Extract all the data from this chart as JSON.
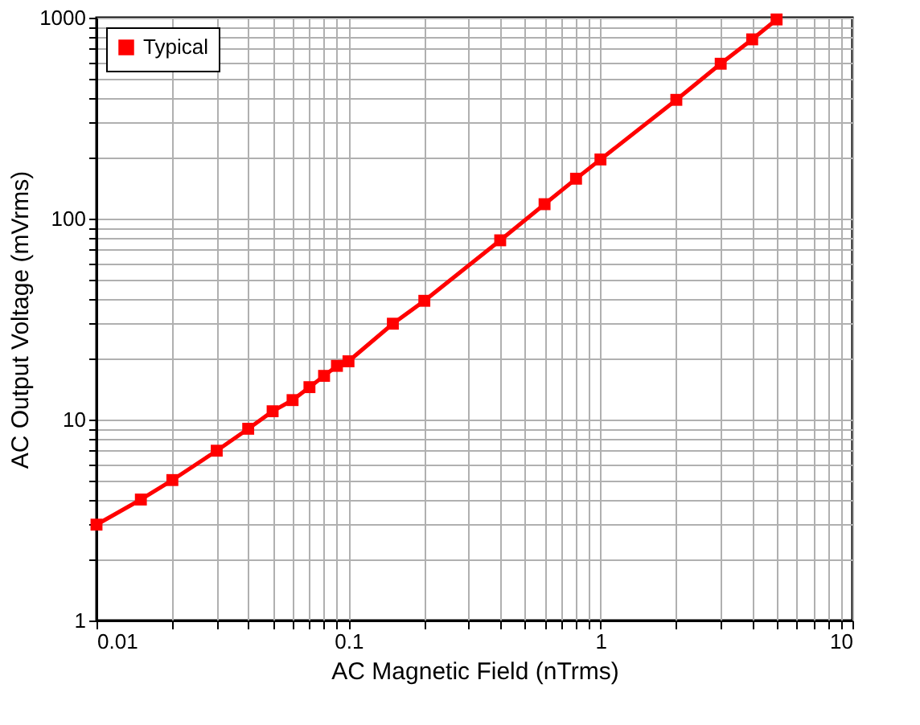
{
  "chart_data": {
    "type": "line",
    "xlabel": "AC Magnetic Field (nTrms)",
    "ylabel": "AC Output Voltage (mVrms)",
    "x": [
      0.01,
      0.015,
      0.02,
      0.03,
      0.04,
      0.05,
      0.06,
      0.07,
      0.08,
      0.09,
      0.1,
      0.15,
      0.2,
      0.4,
      0.6,
      0.8,
      1,
      2,
      3,
      4,
      5
    ],
    "series": [
      {
        "name": "Typical",
        "color": "#ff0000",
        "values": [
          3,
          4,
          5,
          7,
          9,
          11,
          12.5,
          14.5,
          16.5,
          18.5,
          19.5,
          30,
          39,
          78,
          118,
          158,
          197,
          390,
          590,
          780,
          980
        ]
      }
    ],
    "xlim": [
      0.01,
      10
    ],
    "ylim": [
      1,
      1000
    ],
    "xticks": [
      0.01,
      0.1,
      1,
      10
    ],
    "yticks": [
      1,
      10,
      100,
      1000
    ],
    "log": "xy",
    "grid": true,
    "legend": "top left",
    "marker": "square",
    "line_style": "solid"
  }
}
